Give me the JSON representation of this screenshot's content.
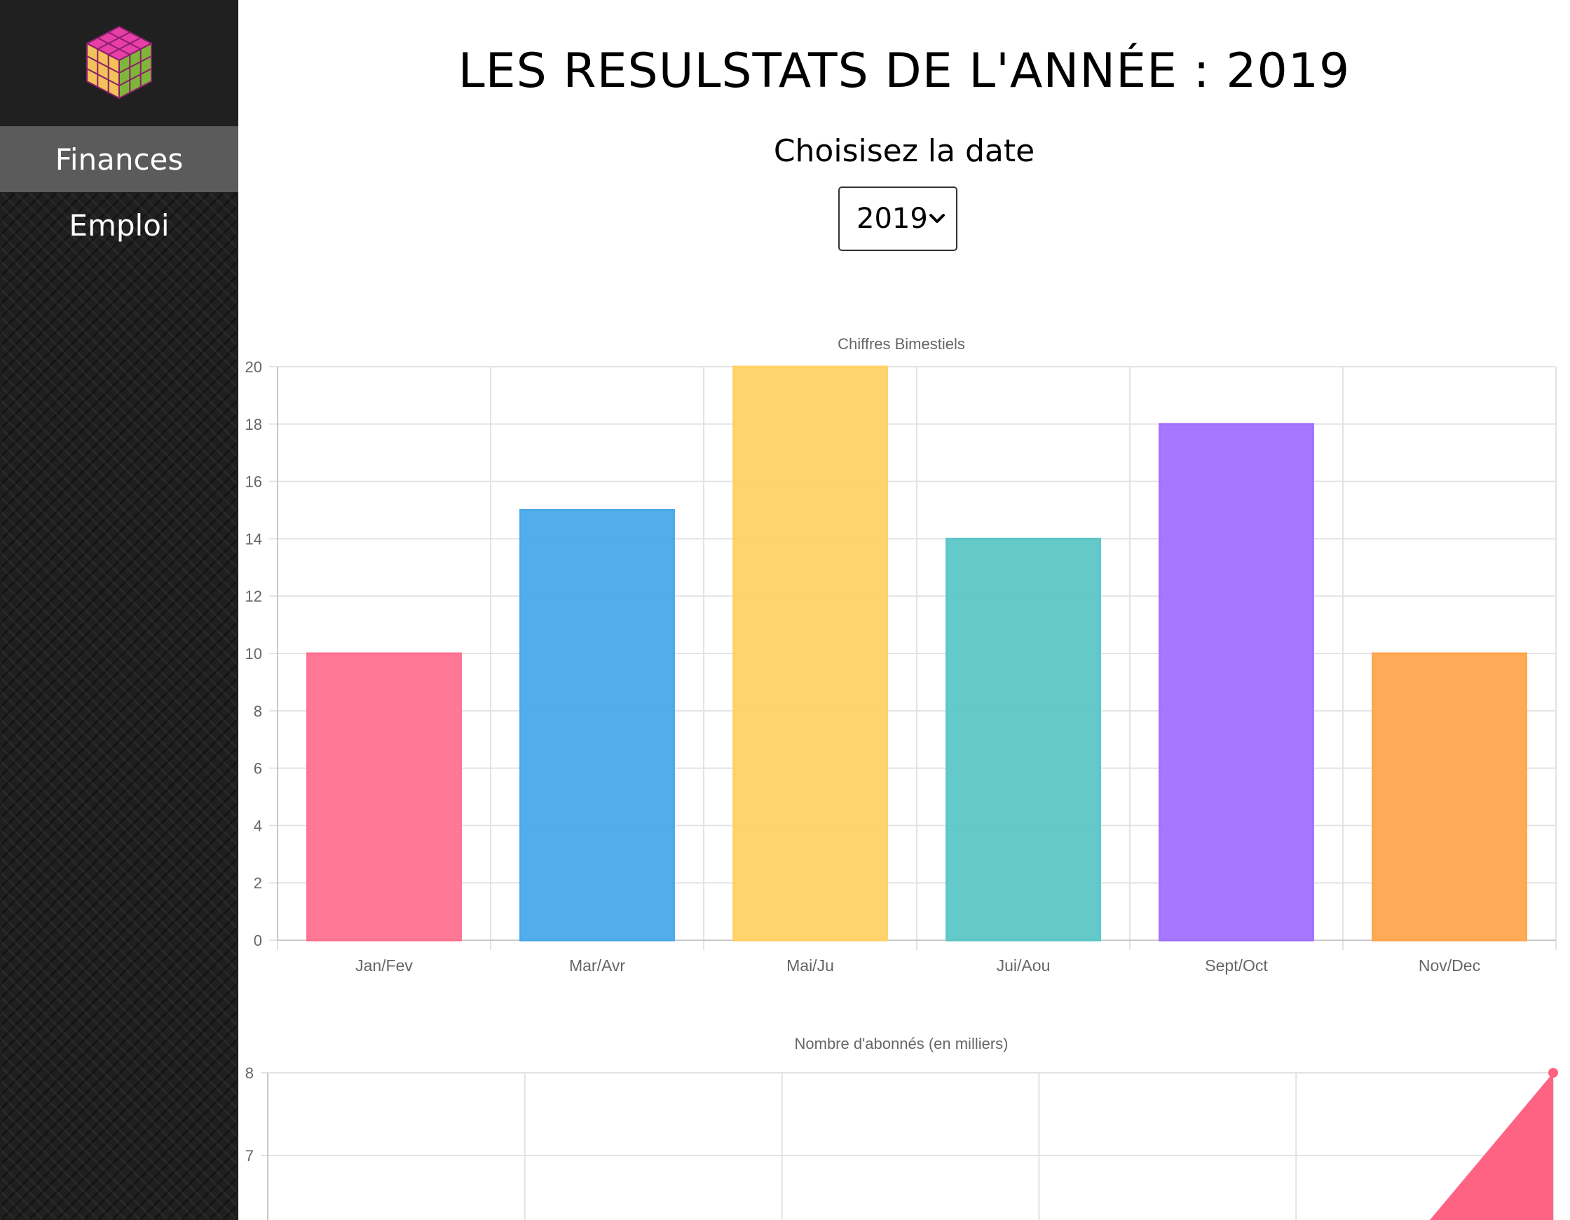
{
  "sidebar": {
    "logo_icon": "rubiks-cube-icon",
    "items": [
      {
        "label": "Finances",
        "active": true
      },
      {
        "label": "Emploi",
        "active": false
      }
    ]
  },
  "header": {
    "title": "LES RESULSTATS DE L'ANNÉE : 2019",
    "date_prompt": "Choisisez la date"
  },
  "year_select": {
    "selected": "2019"
  },
  "chart_data": [
    {
      "type": "bar",
      "title": "Chiffres Bimestiels",
      "categories": [
        "Jan/Fev",
        "Mar/Avr",
        "Mai/Ju",
        "Jui/Aou",
        "Sept/Oct",
        "Nov/Dec"
      ],
      "values": [
        10,
        15,
        20,
        14,
        18,
        10
      ],
      "colors": [
        "#ff7190",
        "#49a9ea",
        "#ffd165",
        "#5cc6c6",
        "#a270ff",
        "#ffa54e"
      ],
      "ylim": [
        0,
        20
      ],
      "yticks": [
        "0",
        "2",
        "4",
        "6",
        "8",
        "10",
        "12",
        "14",
        "16",
        "18",
        "20"
      ],
      "grid": true,
      "legend": "none"
    },
    {
      "type": "area",
      "title": "Nombre d'abonnés (en milliers)",
      "x_count": 6,
      "y_at_last": 8,
      "ylim_top": 8,
      "yticks": [
        "8",
        "7"
      ],
      "color": "#ff6384",
      "grid": true,
      "legend": "none"
    }
  ]
}
